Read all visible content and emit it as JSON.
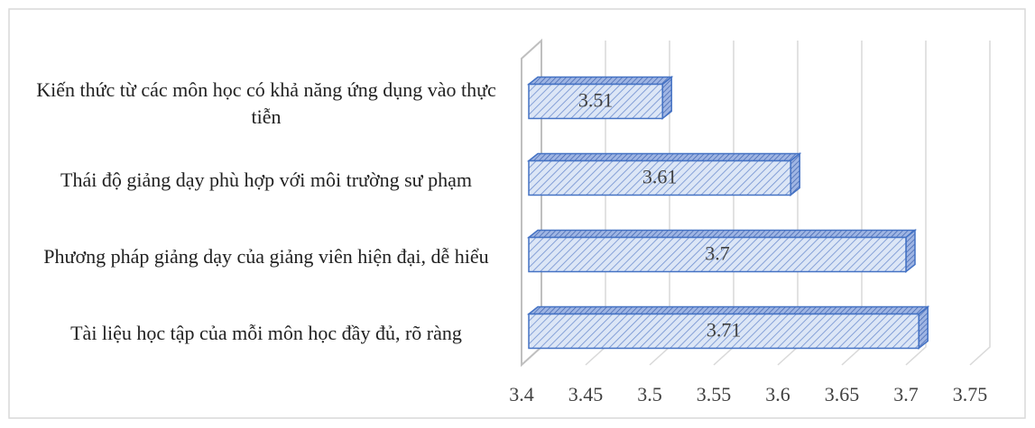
{
  "chart_data": {
    "type": "bar",
    "orientation": "horizontal",
    "categories": [
      "Kiến thức từ các môn học có khả năng ứng dụng vào thực tiễn",
      "Thái độ giảng dạy phù hợp với môi trường sư phạm",
      "Phương pháp giảng dạy của giảng viên  hiện đại, dễ hiểu",
      "Tài liệu học tập của mỗi môn học đầy đủ, rõ ràng"
    ],
    "values": [
      3.51,
      3.61,
      3.7,
      3.71
    ],
    "color": "#4472c4",
    "xlim": [
      3.4,
      3.75
    ],
    "xticks": [
      3.4,
      3.45,
      3.5,
      3.55,
      3.6,
      3.65,
      3.7,
      3.75
    ],
    "grid": true
  }
}
